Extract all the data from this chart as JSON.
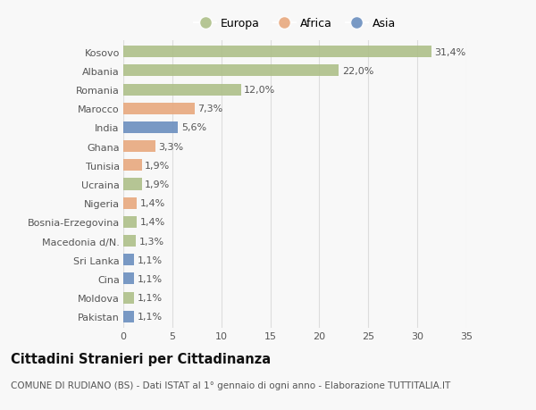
{
  "countries": [
    "Kosovo",
    "Albania",
    "Romania",
    "Marocco",
    "India",
    "Ghana",
    "Tunisia",
    "Ucraina",
    "Nigeria",
    "Bosnia-Erzegovina",
    "Macedonia d/N.",
    "Sri Lanka",
    "Cina",
    "Moldova",
    "Pakistan"
  ],
  "values": [
    31.4,
    22.0,
    12.0,
    7.3,
    5.6,
    3.3,
    1.9,
    1.9,
    1.4,
    1.4,
    1.3,
    1.1,
    1.1,
    1.1,
    1.1
  ],
  "labels": [
    "31,4%",
    "22,0%",
    "12,0%",
    "7,3%",
    "5,6%",
    "3,3%",
    "1,9%",
    "1,9%",
    "1,4%",
    "1,4%",
    "1,3%",
    "1,1%",
    "1,1%",
    "1,1%",
    "1,1%"
  ],
  "continents": [
    "Europa",
    "Europa",
    "Europa",
    "Africa",
    "Asia",
    "Africa",
    "Africa",
    "Europa",
    "Africa",
    "Europa",
    "Europa",
    "Asia",
    "Asia",
    "Europa",
    "Asia"
  ],
  "colors": {
    "Europa": "#aec089",
    "Africa": "#e8a97e",
    "Asia": "#6b8fbf"
  },
  "title": "Cittadini Stranieri per Cittadinanza",
  "subtitle": "COMUNE DI RUDIANO (BS) - Dati ISTAT al 1° gennaio di ogni anno - Elaborazione TUTTITALIA.IT",
  "xlim": [
    0,
    35
  ],
  "xticks": [
    0,
    5,
    10,
    15,
    20,
    25,
    30,
    35
  ],
  "background_color": "#f8f8f8",
  "grid_color": "#dddddd",
  "bar_height": 0.62,
  "title_fontsize": 10.5,
  "subtitle_fontsize": 7.5,
  "tick_fontsize": 8,
  "label_fontsize": 8,
  "legend_fontsize": 9
}
